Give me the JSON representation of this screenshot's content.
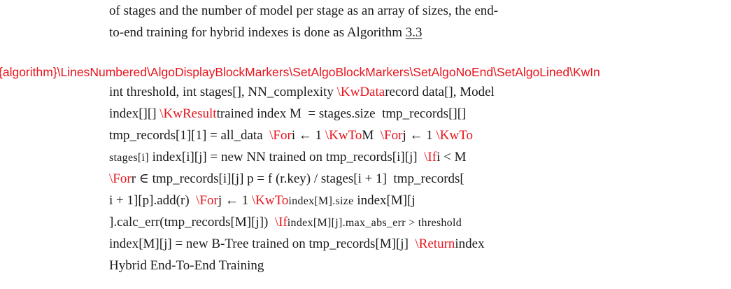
{
  "intro": {
    "line1": "of stages and the number of model per stage as an array of sizes, the end-",
    "line2_text": "to-end training for hybrid indexes is done as Algorithm ",
    "line2_ref": "3.3"
  },
  "error_line": "{algorithm}\\LinesNumbered\\AlgoDisplayBlockMarkers\\SetAlgoBlockMarkers\\SetAlgoNoEnd\\SetAlgoLined\\KwIn",
  "algorithm": {
    "l1": {
      "a": "int threshold, int stages[], NN_complexity ",
      "b": "\\KwData",
      "c": "record data[], Model"
    },
    "l2": {
      "a": "index[][] ",
      "b": "\\KwResult",
      "c": "trained index M  = stages.size  tmp_records[][]"
    },
    "l3": {
      "a": "tmp_records[1][1] = all_data  ",
      "b": "\\For",
      "c": "i ← 1 ",
      "d": "\\KwTo",
      "e": "M  ",
      "f": "\\For",
      "g": "j ← 1 ",
      "h": "\\KwTo"
    },
    "l4": {
      "a": "stages[i]",
      "b": " index[i][j] = new NN trained on tmp_records[i][j]  ",
      "c": "\\If",
      "d": "i < M"
    },
    "l5": {
      "a": "\\For",
      "b": "r ∈ tmp_records[i][j] p = f (r.key) / stages[i + 1]  tmp_records["
    },
    "l6": {
      "a": "i + 1][p].add(r)  ",
      "b": "\\For",
      "c": "j ← 1 ",
      "d": "\\KwTo",
      "e": "index[M].size",
      "f": " index[M][j"
    },
    "l7": {
      "a": "].calc_err(tmp_records[M][j])  ",
      "b": "\\If",
      "c": "index[M][j].max_abs_err > threshold"
    },
    "l8": {
      "a": "index[M][j] = new B-Tree trained on tmp_records[M][j]  ",
      "b": "\\Return",
      "c": "index"
    },
    "caption": "Hybrid End-To-End Training"
  }
}
